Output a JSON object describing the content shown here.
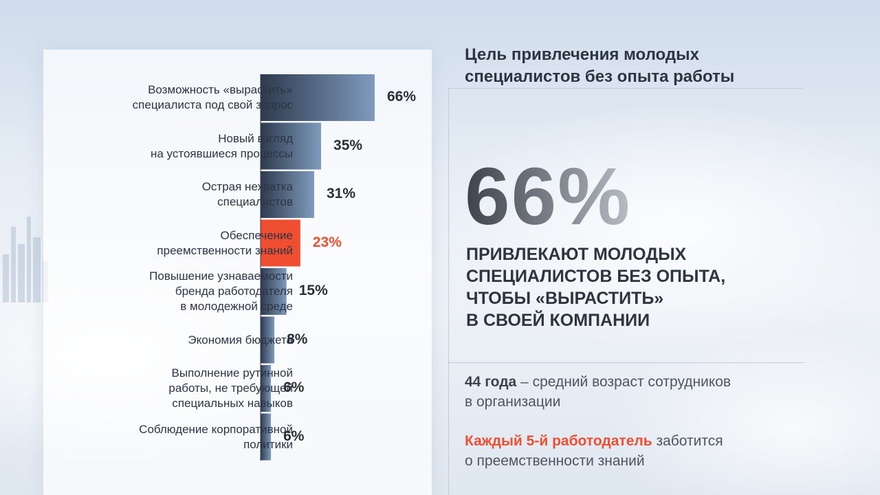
{
  "header": {
    "title": "Цель привлечения молодых специалистов без опыта работы"
  },
  "highlight": {
    "value": "66%",
    "caption": "ПРИВЛЕКАЮТ МОЛОДЫХ\nСПЕЦИАЛИСТОВ БЕЗ ОПЫТА,\nЧТОБЫ «ВЫРАСТИТЬ»\nВ СВОЕЙ КОМПАНИИ"
  },
  "facts": [
    {
      "lead": "44 года",
      "rest": " – средний возраст сотрудников\nв организации",
      "accent": false
    },
    {
      "lead": "Каждый 5-й работодатель",
      "rest": " заботится\nо преемственности знаний",
      "accent": true
    }
  ],
  "colors": {
    "bar_gradient_start": "#2e3a4d",
    "bar_gradient_end": "#7f9bbd",
    "highlight_bar": "#f04e30",
    "accent_text": "#f04e30"
  },
  "chart_data": {
    "type": "bar",
    "orientation": "horizontal",
    "title": "",
    "xlabel": "",
    "ylabel": "",
    "xlim": [
      0,
      66
    ],
    "grid": false,
    "legend": "none",
    "highlight_index": 3,
    "categories": [
      "Возможность «вырастить»\nспециалиста под свой запрос",
      "Новый взгляд\nна устоявшиеся процессы",
      "Острая нехватка\nспециалистов",
      "Обеспечение\nпреемственности знаний",
      "Повышение узнаваемости\nбренда работодателя\nв молодежной среде",
      "Экономия бюджета",
      "Выполнение рутинной\nработы, не требующей\nспециальных навыков",
      "Соблюдение корпоративной\nполитики"
    ],
    "values": [
      66,
      35,
      31,
      23,
      15,
      8,
      6,
      6
    ],
    "value_labels": [
      "66%",
      "35%",
      "31%",
      "23%",
      "15%",
      "8%",
      "6%",
      "6%"
    ]
  }
}
